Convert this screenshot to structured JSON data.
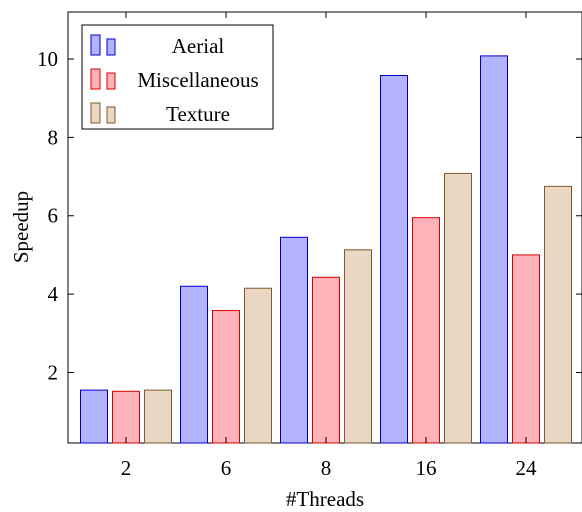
{
  "chart_data": {
    "type": "bar",
    "title": "",
    "xlabel": "#Threads",
    "ylabel": "Speedup",
    "categories": [
      "2",
      "6",
      "8",
      "16",
      "24"
    ],
    "ylim": [
      0.2,
      11.2
    ],
    "yticks": [
      2,
      4,
      6,
      8,
      10
    ],
    "grid": false,
    "legend_position": "top-left",
    "series": [
      {
        "name": "Aerial",
        "values": [
          1.55,
          4.2,
          5.45,
          9.58,
          10.08
        ],
        "fill": "#b3b3ff",
        "stroke": "#0000cc"
      },
      {
        "name": "Miscellaneous",
        "values": [
          1.52,
          3.58,
          4.43,
          5.95,
          5.0
        ],
        "fill": "#ffb3b8",
        "stroke": "#d40000"
      },
      {
        "name": "Texture",
        "values": [
          1.55,
          4.15,
          5.13,
          7.08,
          6.75
        ],
        "fill": "#ead8c4",
        "stroke": "#7a5a30"
      }
    ]
  }
}
